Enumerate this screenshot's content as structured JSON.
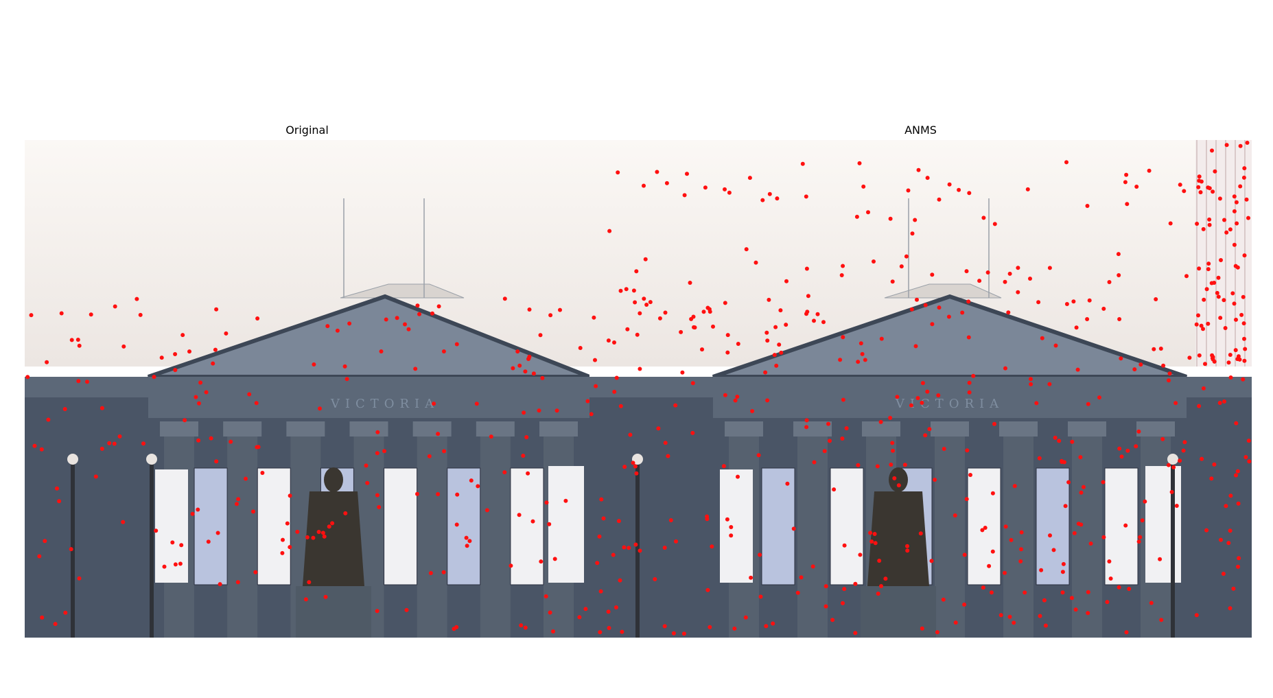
{
  "figure": {
    "panels": [
      {
        "id": "left",
        "title": "Original"
      },
      {
        "id": "right",
        "title": "ANMS"
      }
    ],
    "colors": {
      "sky": "#f4efec",
      "stone_dark": "#4a5566",
      "stone_mid": "#5c6878",
      "stone_light": "#7b8798",
      "banner": "#f1f1f3",
      "keypoint": "#ff1010",
      "statue": "#3a3630"
    },
    "marker_icon": "red-dot",
    "inscription": "VICTORIA"
  }
}
